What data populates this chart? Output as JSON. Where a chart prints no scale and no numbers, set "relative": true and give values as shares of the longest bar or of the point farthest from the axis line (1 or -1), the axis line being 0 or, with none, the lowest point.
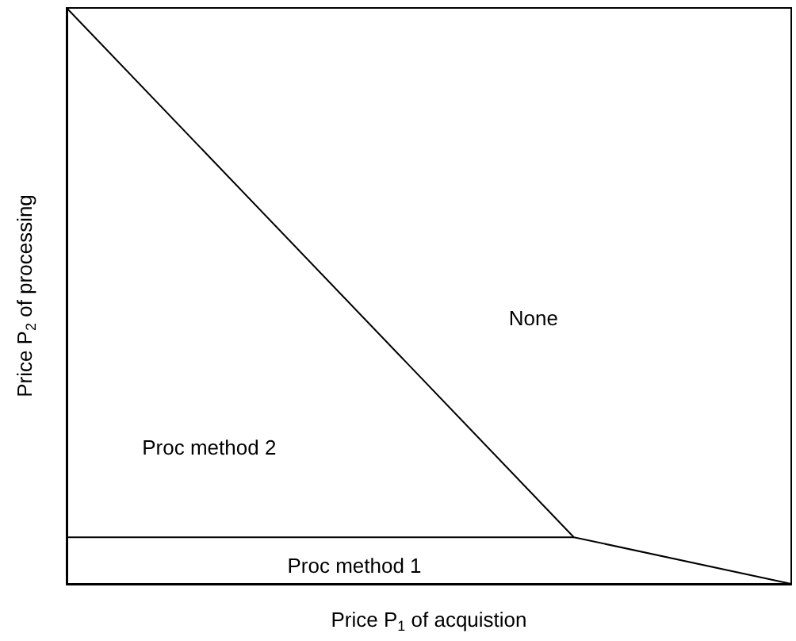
{
  "chart_data": {
    "type": "line",
    "relative": true,
    "xlabel": "Price P$_{1}$ of acquistion",
    "ylabel": "Price P$_{2}$ of processing",
    "categories": [
      null,
      null,
      null,
      null,
      null,
      null,
      null,
      null,
      null,
      null,
      null
    ],
    "series": [
      {
        "color": "#000000",
        "values": [
          1,
          null,
          null,
          null,
          null,
          null,
          null,
          0.081,
          null,
          null,
          0
        ]
      },
      {
        "color": "#000000",
        "values": [
          0.081,
          null,
          null,
          null,
          null,
          null,
          null,
          0.081,
          null,
          null,
          null
        ]
      }
    ],
    "annotations": [
      "None",
      "Proc method 2",
      "Proc method 1"
    ],
    "marker": "none",
    "line_style": "solid",
    "grid": false
  }
}
